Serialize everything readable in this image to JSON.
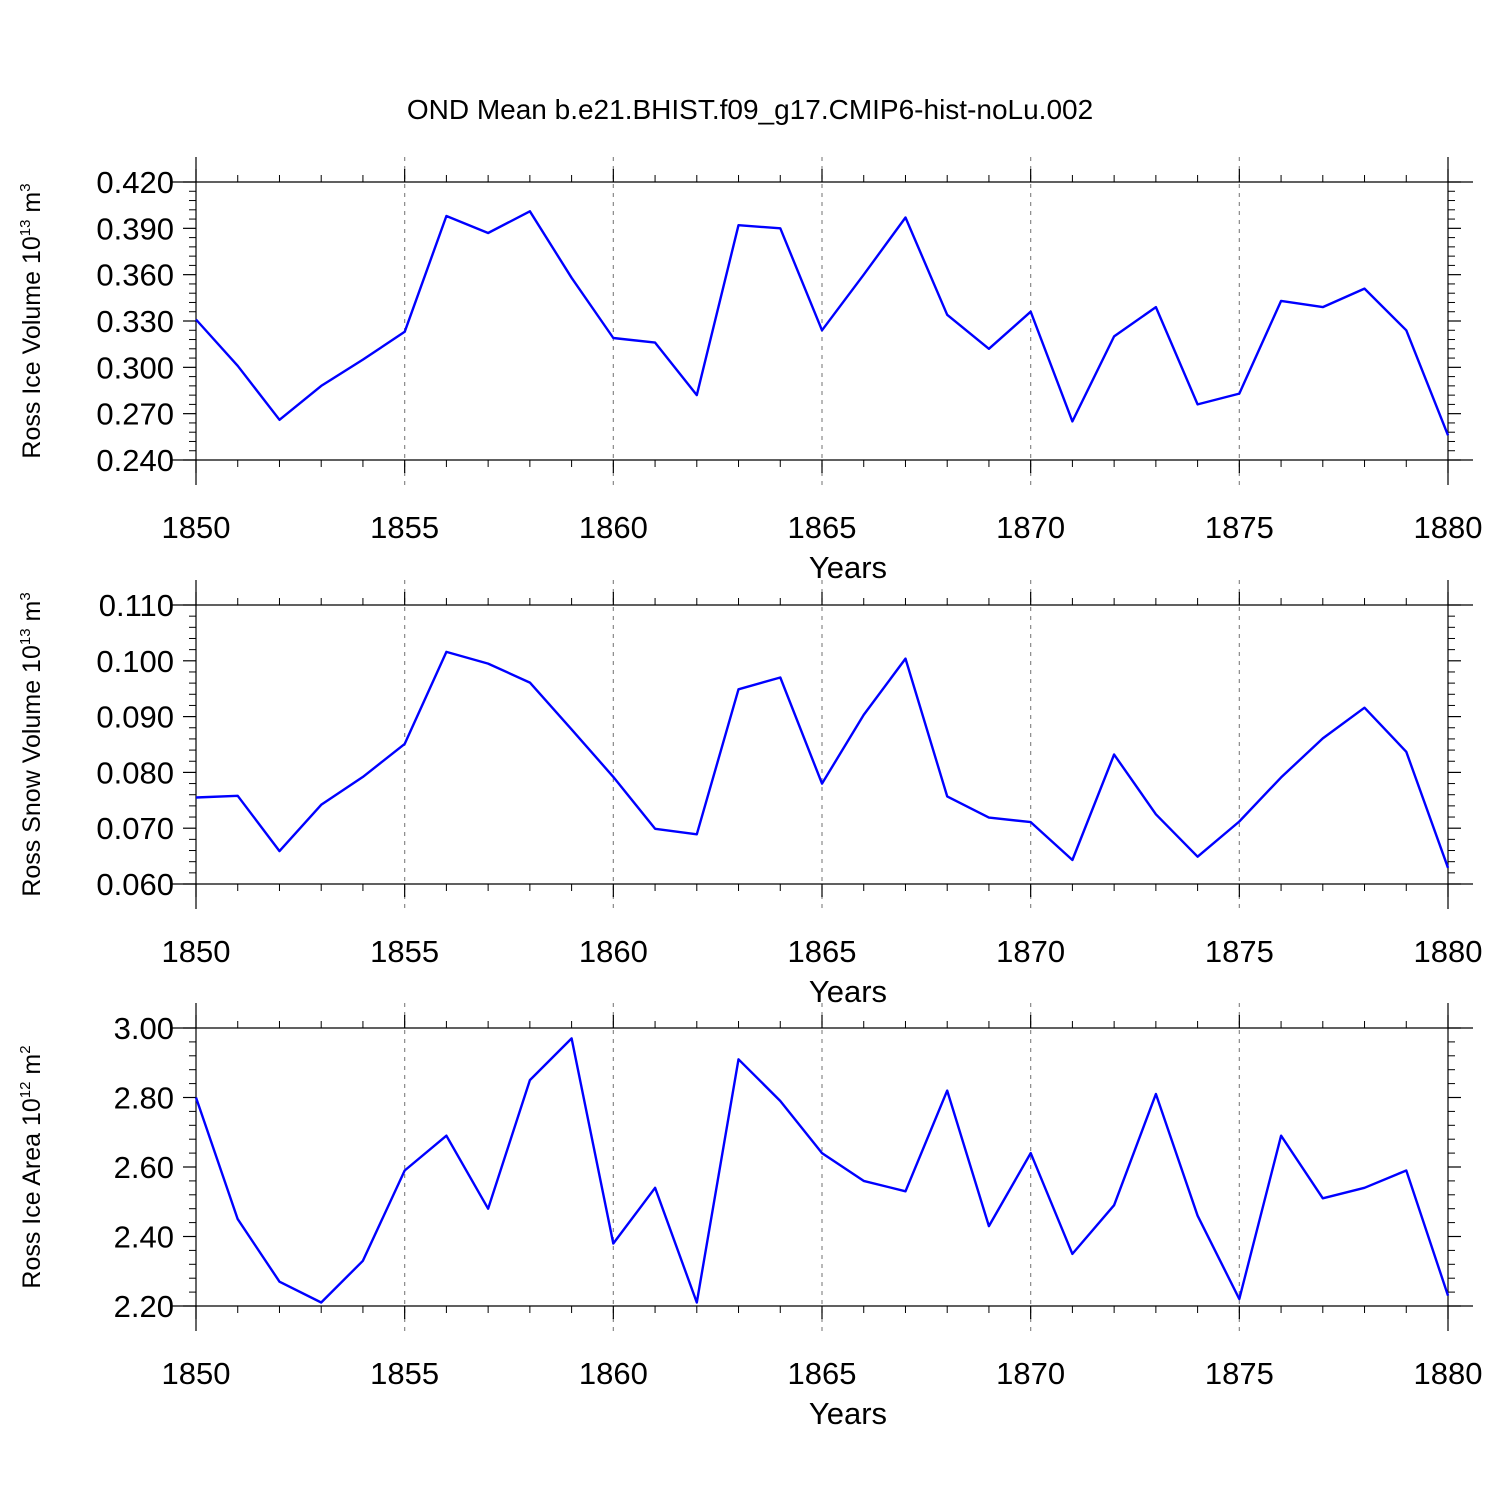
{
  "title": "OND Mean b.e21.BHIST.f09_g17.CMIP6-hist-noLu.002",
  "chart_data": [
    {
      "type": "line",
      "id": "ice-volume",
      "ylabel": {
        "prefix": "Ross Ice Volume 10",
        "exp1": "13",
        "unit": " m",
        "exp2": "3"
      },
      "xlabel": "Years",
      "xlim": [
        1850,
        1880
      ],
      "ylim": [
        0.24,
        0.42
      ],
      "yticks": [
        0.24,
        0.27,
        0.3,
        0.33,
        0.36,
        0.39,
        0.42
      ],
      "ytick_labels": [
        "0.240",
        "0.270",
        "0.300",
        "0.330",
        "0.360",
        "0.390",
        "0.420"
      ],
      "xticks": [
        1850,
        1855,
        1860,
        1865,
        1870,
        1875,
        1880
      ],
      "xtick_labels": [
        "1850",
        "1855",
        "1860",
        "1865",
        "1870",
        "1875",
        "1880"
      ],
      "grid": "x dashed",
      "color": "#0000ff",
      "x": [
        1850,
        1851,
        1852,
        1853,
        1854,
        1855,
        1856,
        1857,
        1858,
        1859,
        1860,
        1861,
        1862,
        1863,
        1864,
        1865,
        1866,
        1867,
        1868,
        1869,
        1870,
        1871,
        1872,
        1873,
        1874,
        1875,
        1876,
        1877,
        1878,
        1879,
        1880
      ],
      "values": [
        0.331,
        0.301,
        0.266,
        0.288,
        0.305,
        0.323,
        0.398,
        0.387,
        0.401,
        0.358,
        0.319,
        0.316,
        0.282,
        0.392,
        0.39,
        0.324,
        0.36,
        0.397,
        0.334,
        0.312,
        0.336,
        0.265,
        0.32,
        0.339,
        0.276,
        0.283,
        0.343,
        0.339,
        0.351,
        0.324,
        0.256
      ]
    },
    {
      "type": "line",
      "id": "snow-volume",
      "ylabel": {
        "prefix": "Ross Snow Volume 10",
        "exp1": "13",
        "unit": " m",
        "exp2": "3"
      },
      "xlabel": "Years",
      "xlim": [
        1850,
        1880
      ],
      "ylim": [
        0.06,
        0.11
      ],
      "yticks": [
        0.06,
        0.07,
        0.08,
        0.09,
        0.1,
        0.11
      ],
      "ytick_labels": [
        "0.060",
        "0.070",
        "0.080",
        "0.090",
        "0.100",
        "0.110"
      ],
      "xticks": [
        1850,
        1855,
        1860,
        1865,
        1870,
        1875,
        1880
      ],
      "xtick_labels": [
        "1850",
        "1855",
        "1860",
        "1865",
        "1870",
        "1875",
        "1880"
      ],
      "grid": "x dashed",
      "color": "#0000ff",
      "x": [
        1850,
        1851,
        1852,
        1853,
        1854,
        1855,
        1856,
        1857,
        1858,
        1859,
        1860,
        1861,
        1862,
        1863,
        1864,
        1865,
        1866,
        1867,
        1868,
        1869,
        1870,
        1871,
        1872,
        1873,
        1874,
        1875,
        1876,
        1877,
        1878,
        1879,
        1880
      ],
      "values": [
        0.0755,
        0.0758,
        0.0659,
        0.0742,
        0.0792,
        0.0851,
        0.1016,
        0.0995,
        0.0961,
        0.0877,
        0.0792,
        0.0699,
        0.0689,
        0.0949,
        0.097,
        0.078,
        0.0903,
        0.1004,
        0.0757,
        0.0719,
        0.0711,
        0.0643,
        0.0832,
        0.0725,
        0.0649,
        0.0712,
        0.0791,
        0.0861,
        0.0916,
        0.0837,
        0.0629
      ]
    },
    {
      "type": "line",
      "id": "ice-area",
      "ylabel": {
        "prefix": "Ross Ice Area 10",
        "exp1": "12",
        "unit": " m",
        "exp2": "2"
      },
      "xlabel": "Years",
      "xlim": [
        1850,
        1880
      ],
      "ylim": [
        2.2,
        3.0
      ],
      "yticks": [
        2.2,
        2.4,
        2.6,
        2.8,
        3.0
      ],
      "ytick_labels": [
        "2.20",
        "2.40",
        "2.60",
        "2.80",
        "3.00"
      ],
      "xticks": [
        1850,
        1855,
        1860,
        1865,
        1870,
        1875,
        1880
      ],
      "xtick_labels": [
        "1850",
        "1855",
        "1860",
        "1865",
        "1870",
        "1875",
        "1880"
      ],
      "grid": "x dashed",
      "color": "#0000ff",
      "x": [
        1850,
        1851,
        1852,
        1853,
        1854,
        1855,
        1856,
        1857,
        1858,
        1859,
        1860,
        1861,
        1862,
        1863,
        1864,
        1865,
        1866,
        1867,
        1868,
        1869,
        1870,
        1871,
        1872,
        1873,
        1874,
        1875,
        1876,
        1877,
        1878,
        1879,
        1880
      ],
      "values": [
        2.8,
        2.45,
        2.27,
        2.21,
        2.33,
        2.59,
        2.69,
        2.48,
        2.85,
        2.97,
        2.38,
        2.54,
        2.21,
        2.91,
        2.79,
        2.64,
        2.56,
        2.53,
        2.82,
        2.43,
        2.64,
        2.35,
        2.49,
        2.81,
        2.46,
        2.22,
        2.69,
        2.51,
        2.54,
        2.59,
        2.23
      ]
    }
  ]
}
